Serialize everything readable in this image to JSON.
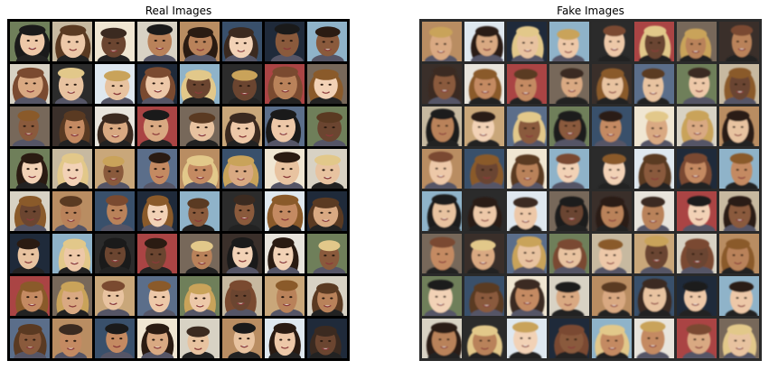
{
  "panels": [
    {
      "title": "Real Images",
      "grid_rows": 8,
      "grid_cols": 8
    },
    {
      "title": "Fake Images",
      "grid_rows": 8,
      "grid_cols": 8
    }
  ],
  "colors": {
    "real_grid_border": "#000000",
    "fake_grid_border": "#2a2a2a",
    "page_background": "#ffffff"
  }
}
